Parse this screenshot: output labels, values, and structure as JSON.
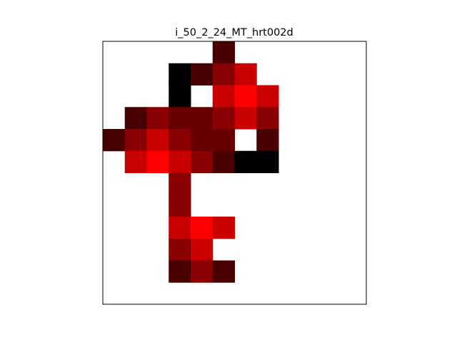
{
  "chart_data": {
    "type": "heatmap",
    "title": "i_50_2_24_MT_hrt002d",
    "xlabel": "",
    "ylabel": "",
    "grid": false,
    "axes_ticks": "none",
    "colormap": [
      "#ffffff",
      "#000000",
      "#3a0000",
      "#4a0000",
      "#6e0000",
      "#8a0000",
      "#c80000",
      "#ff0000"
    ],
    "n_rows": 12,
    "n_cols": 12,
    "cells": [
      {
        "row": 0,
        "col": 5,
        "level": 0.15
      },
      {
        "row": 1,
        "col": 3,
        "level": 0.0
      },
      {
        "row": 1,
        "col": 4,
        "level": 0.15
      },
      {
        "row": 1,
        "col": 5,
        "level": 0.45
      },
      {
        "row": 1,
        "col": 6,
        "level": 0.75
      },
      {
        "row": 2,
        "col": 3,
        "level": 0.0
      },
      {
        "row": 2,
        "col": 5,
        "level": 0.75
      },
      {
        "row": 2,
        "col": 6,
        "level": 1.0
      },
      {
        "row": 2,
        "col": 7,
        "level": 0.75
      },
      {
        "row": 3,
        "col": 1,
        "level": 0.15
      },
      {
        "row": 3,
        "col": 2,
        "level": 0.45
      },
      {
        "row": 3,
        "col": 3,
        "level": 0.3
      },
      {
        "row": 3,
        "col": 4,
        "level": 0.3
      },
      {
        "row": 3,
        "col": 5,
        "level": 0.45
      },
      {
        "row": 3,
        "col": 6,
        "level": 0.75
      },
      {
        "row": 3,
        "col": 7,
        "level": 0.45
      },
      {
        "row": 4,
        "col": 0,
        "level": 0.15
      },
      {
        "row": 4,
        "col": 1,
        "level": 0.45
      },
      {
        "row": 4,
        "col": 2,
        "level": 0.75
      },
      {
        "row": 4,
        "col": 3,
        "level": 0.45
      },
      {
        "row": 4,
        "col": 4,
        "level": 0.3
      },
      {
        "row": 4,
        "col": 5,
        "level": 0.3
      },
      {
        "row": 4,
        "col": 7,
        "level": 0.15
      },
      {
        "row": 5,
        "col": 1,
        "level": 0.75
      },
      {
        "row": 5,
        "col": 2,
        "level": 1.0
      },
      {
        "row": 5,
        "col": 3,
        "level": 0.75
      },
      {
        "row": 5,
        "col": 4,
        "level": 0.45
      },
      {
        "row": 5,
        "col": 5,
        "level": 0.15
      },
      {
        "row": 5,
        "col": 6,
        "level": 0.0
      },
      {
        "row": 5,
        "col": 7,
        "level": 0.0
      },
      {
        "row": 6,
        "col": 3,
        "level": 0.45
      },
      {
        "row": 7,
        "col": 3,
        "level": 0.45
      },
      {
        "row": 8,
        "col": 3,
        "level": 0.75
      },
      {
        "row": 8,
        "col": 4,
        "level": 1.0
      },
      {
        "row": 8,
        "col": 5,
        "level": 0.75
      },
      {
        "row": 9,
        "col": 3,
        "level": 0.45
      },
      {
        "row": 9,
        "col": 4,
        "level": 0.75
      },
      {
        "row": 10,
        "col": 3,
        "level": 0.15
      },
      {
        "row": 10,
        "col": 4,
        "level": 0.45
      },
      {
        "row": 10,
        "col": 5,
        "level": 0.15
      }
    ]
  }
}
